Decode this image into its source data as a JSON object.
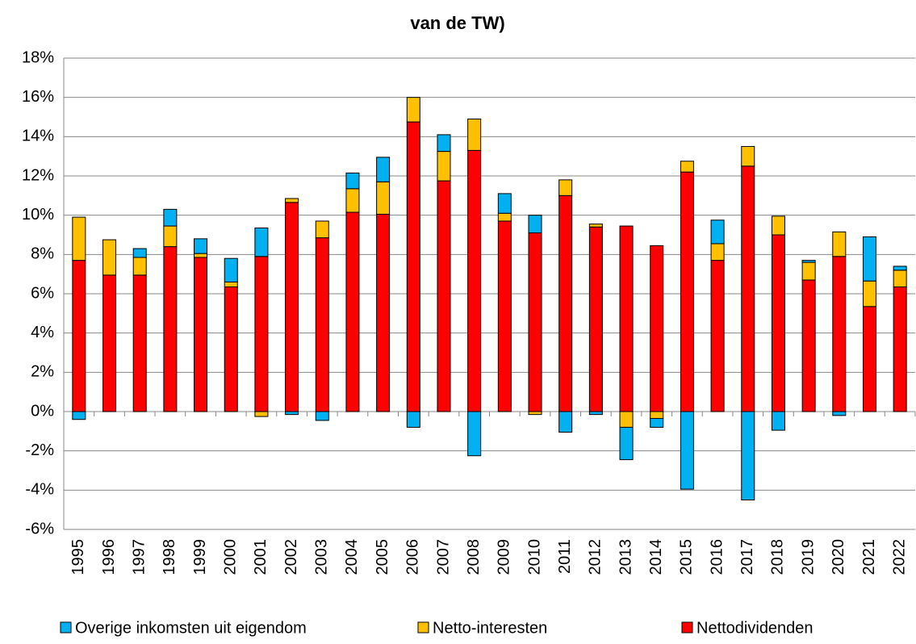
{
  "chart_data": {
    "type": "stacked-bar",
    "title": "van de TW)",
    "categories": [
      "1995",
      "1996",
      "1997",
      "1998",
      "1999",
      "2000",
      "2001",
      "2002",
      "2003",
      "2004",
      "2005",
      "2006",
      "2007",
      "2008",
      "2009",
      "2010",
      "2011",
      "2012",
      "2013",
      "2014",
      "2015",
      "2016",
      "2017",
      "2018",
      "2019",
      "2020",
      "2021",
      "2022"
    ],
    "series": [
      {
        "name": "Overige inkomsten uit eigendom",
        "color": "#00b0f0",
        "values": [
          -0.4,
          0,
          0.45,
          0.85,
          0.75,
          1.2,
          1.45,
          -0.15,
          -0.45,
          0.8,
          1.25,
          -0.8,
          0.85,
          -2.25,
          1.0,
          0.9,
          -1.05,
          -0.15,
          -1.65,
          -0.45,
          -3.95,
          1.2,
          -4.5,
          -0.95,
          0.1,
          -0.2,
          2.25,
          0.2
        ]
      },
      {
        "name": "Netto-interesten",
        "color": "#ffc000",
        "values": [
          2.2,
          1.8,
          0.9,
          1.05,
          0.2,
          0.25,
          -0.25,
          0.2,
          0.85,
          1.2,
          1.65,
          1.25,
          1.5,
          1.6,
          0.4,
          -0.15,
          0.8,
          0.15,
          -0.8,
          -0.35,
          0.55,
          0.85,
          1.0,
          0.95,
          0.9,
          1.25,
          1.3,
          0.85
        ]
      },
      {
        "name": "Nettodividenden",
        "color": "#ff0000",
        "values": [
          7.7,
          6.95,
          6.95,
          8.4,
          7.85,
          6.35,
          7.9,
          10.65,
          8.85,
          10.15,
          10.05,
          14.75,
          11.75,
          13.3,
          9.7,
          9.1,
          11.0,
          9.4,
          9.45,
          8.45,
          12.2,
          7.7,
          12.5,
          9.0,
          6.7,
          7.9,
          5.35,
          6.35
        ]
      }
    ],
    "ylim": [
      -6,
      18
    ],
    "yticks": [
      {
        "value": -6,
        "label": "-6%"
      },
      {
        "value": -4,
        "label": "-4%"
      },
      {
        "value": -2,
        "label": "-2%"
      },
      {
        "value": 0,
        "label": "0%"
      },
      {
        "value": 2,
        "label": "2%"
      },
      {
        "value": 4,
        "label": "4%"
      },
      {
        "value": 6,
        "label": "6%"
      },
      {
        "value": 8,
        "label": "8%"
      },
      {
        "value": 10,
        "label": "10%"
      },
      {
        "value": 12,
        "label": "12%"
      },
      {
        "value": 14,
        "label": "14%"
      },
      {
        "value": 16,
        "label": "16%"
      },
      {
        "value": 18,
        "label": "18%"
      }
    ],
    "grid": true
  }
}
